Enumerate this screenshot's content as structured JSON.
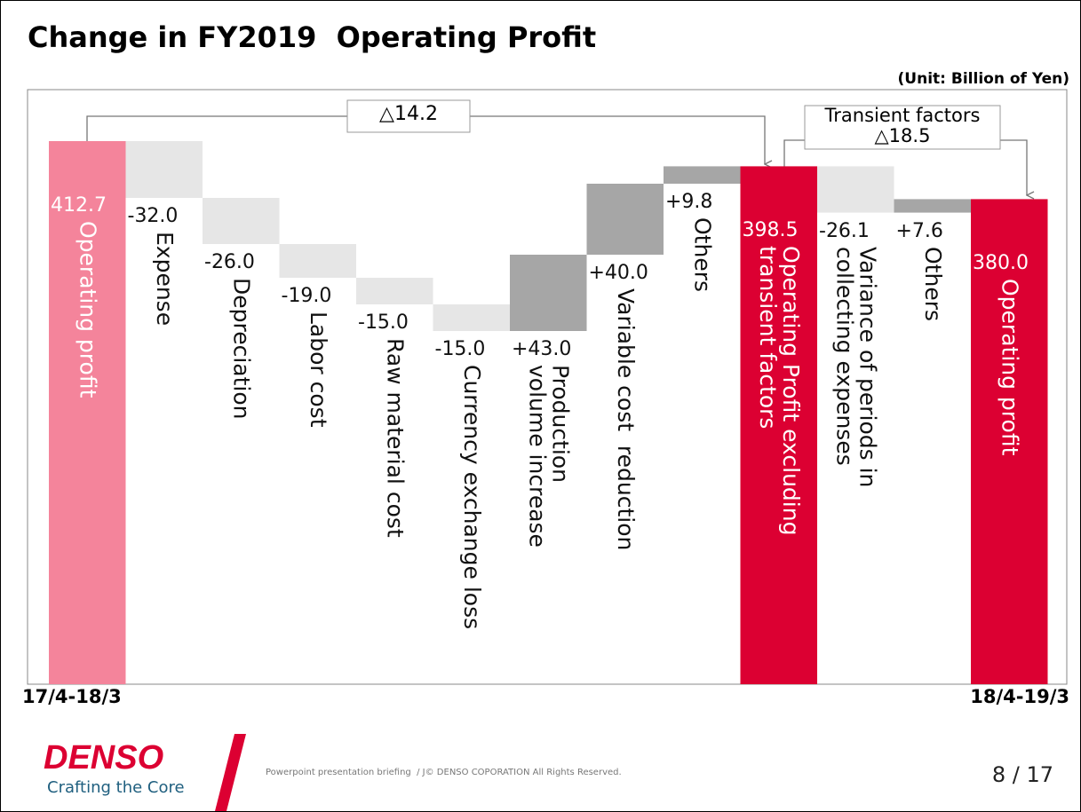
{
  "chart_data": {
    "type": "waterfall",
    "title": "Change in FY2019  Operating Profit",
    "subtitle": "(Unit: Billion of Yen)",
    "categories": [
      "Operating profit",
      "Expense",
      "Depreciation",
      "Labor cost",
      "Raw material cost",
      "Currency exchange loss",
      "Production\nvolume increase",
      "Variable cost  reduction",
      "Others",
      "Operating Profit excluding\ntransient factors",
      "Variance of periods in\ncollecting expenses",
      "Others",
      "Operating profit"
    ],
    "values": [
      412.7,
      -32.0,
      -26.0,
      -19.0,
      -15.0,
      -15.0,
      43.0,
      40.0,
      9.8,
      398.5,
      -26.1,
      7.6,
      380.0
    ],
    "value_labels": [
      "412.7",
      "-32.0",
      "-26.0",
      "-19.0",
      "-15.0",
      "-15.0",
      "+43.0",
      "+40.0",
      "+9.8",
      "398.5",
      "-26.1",
      "+7.6",
      "380.0"
    ],
    "measure": [
      "absolute",
      "relative",
      "relative",
      "relative",
      "relative",
      "relative",
      "relative",
      "relative",
      "relative",
      "absolute",
      "relative",
      "relative",
      "absolute"
    ],
    "colors": [
      "#f4849b",
      "#e6e6e6",
      "#e6e6e6",
      "#e6e6e6",
      "#e6e6e6",
      "#e6e6e6",
      "#a6a6a6",
      "#a6a6a6",
      "#a6a6a6",
      "#dc0032",
      "#e6e6e6",
      "#a6a6a6",
      "#dc0032"
    ],
    "annotations": [
      "△14.2",
      "Transient factors\n△18.5"
    ],
    "periods": [
      "17/4-18/3",
      "18/4-19/3"
    ]
  },
  "footer": {
    "logo": "DENSO",
    "tagline": "Crafting the Core",
    "text": "Powerpoint presentation briefing  / J© DENSO COPORATION All Rights Reserved.",
    "page": "8 / 17"
  }
}
